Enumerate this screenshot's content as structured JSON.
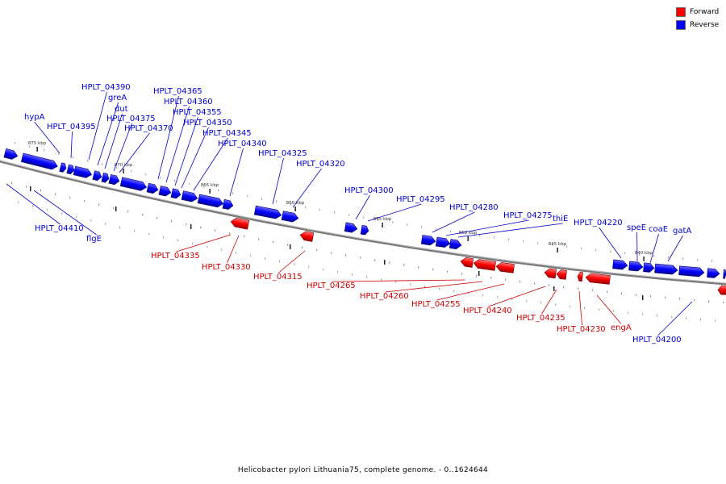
{
  "colors": {
    "forward": "#ff0000",
    "reverse": "#0000ff",
    "forward_label": "#cc0000",
    "reverse_label": "#0000cc",
    "backbone": "#777777"
  },
  "legend": {
    "forward": "Forward",
    "reverse": "Reverse"
  },
  "caption": "Helicobacter pylori Lithuania75, complete genome. - 0..1624644",
  "ticks": [
    "875 kbp",
    "870 kbp",
    "865 kbp",
    "860 kbp",
    "855 kbp",
    "850 kbp",
    "845 kbp",
    "840 kbp"
  ],
  "genes_reverse_top": [
    "hypA",
    "HPLT_04395",
    "HPLT_04390",
    "greA",
    "dut",
    "HPLT_04375",
    "HPLT_04370",
    "HPLT_04365",
    "HPLT_04360",
    "HPLT_04355",
    "HPLT_04350",
    "HPLT_04345",
    "HPLT_04340",
    "HPLT_04325",
    "HPLT_04320",
    "HPLT_04300",
    "HPLT_04295",
    "HPLT_04280",
    "HPLT_04275",
    "thiE",
    "HPLT_04220",
    "speE",
    "coaE",
    "gatA"
  ],
  "genes_reverse_bottom": [
    "HPLT_04410",
    "flgE",
    "HPLT_04200"
  ],
  "genes_forward": [
    "HPLT_04335",
    "HPLT_04330",
    "HPLT_04315",
    "HPLT_04265",
    "HPLT_04260",
    "HPLT_04255",
    "HPLT_04240",
    "HPLT_04235",
    "HPLT_04230",
    "engA"
  ]
}
